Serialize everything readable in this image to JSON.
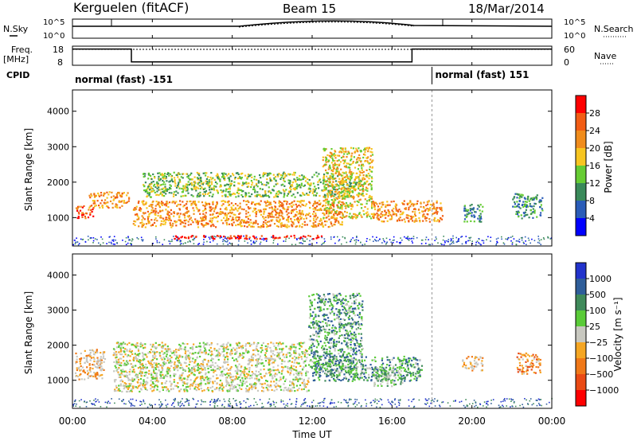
{
  "header": {
    "station": "Kerguelen (fitACF)",
    "beam": "Beam 15",
    "date": "18/Mar/2014"
  },
  "noise_panel": {
    "left_label": "N.Sky",
    "right_label": "N.Search",
    "left_ticks": [
      "10^5",
      "10^0"
    ],
    "right_ticks": [
      "10^5",
      "10^0"
    ]
  },
  "freq_panel": {
    "left_label_line1": "Freq.",
    "left_label_line2": "[MHz]",
    "right_label": "Nave",
    "left_ticks": [
      "18",
      "8"
    ],
    "right_ticks": [
      "60",
      "0"
    ],
    "freq_segments": [
      {
        "start_h": 0.0,
        "end_h": 2.95,
        "mhz": 16.5
      },
      {
        "start_h": 2.95,
        "end_h": 17.0,
        "mhz": 9.8
      },
      {
        "start_h": 17.0,
        "end_h": 24.0,
        "mhz": 16.5
      }
    ],
    "nave_level": 50
  },
  "cpid": {
    "label": "CPID",
    "segments": [
      {
        "start_h": 0.0,
        "text": "normal (fast) -151"
      },
      {
        "start_h": 18.0,
        "text": "normal (fast) 151"
      }
    ]
  },
  "time_axis": {
    "label": "Time UT",
    "ticks": [
      "00:00",
      "04:00",
      "08:00",
      "12:00",
      "16:00",
      "20:00",
      "00:00"
    ],
    "range_h": [
      0,
      24
    ]
  },
  "power_panel": {
    "ylabel": "Slant Range [km]",
    "yticks": [
      "1000",
      "2000",
      "3000",
      "4000"
    ],
    "colorbar_label": "Power [dB]",
    "colorbar_ticks": [
      "4",
      "8",
      "12",
      "16",
      "20",
      "24",
      "28"
    ],
    "colors": [
      "#0000ff",
      "#2a5cb8",
      "#3a8a5a",
      "#66cc33",
      "#f7c520",
      "#f08c1c",
      "#f25c14",
      "#ff0000"
    ]
  },
  "velocity_panel": {
    "ylabel": "Slant Range [km]",
    "yticks": [
      "1000",
      "2000",
      "3000",
      "4000"
    ],
    "colorbar_label": "Velocity [m s⁻¹]",
    "colorbar_ticks": [
      "1000",
      "500",
      "100",
      "25",
      "−25",
      "−100",
      "−500",
      "−1000"
    ],
    "colors": [
      "#2233cc",
      "#2f5e9a",
      "#3f8a5a",
      "#5acb38",
      "#c8c8c0",
      "#f5a623",
      "#f07818",
      "#ea4a14",
      "#ff0000"
    ],
    "ground_scatter_color": "#c8c8c0"
  },
  "chart_data": {
    "type": "heatmap",
    "x_range_hours": [
      0,
      24
    ],
    "y_range_km": [
      200,
      4600
    ],
    "power_features": [
      {
        "start_h": 0.1,
        "end_h": 1.0,
        "r_lo": 1000,
        "r_hi": 1350,
        "level": 6
      },
      {
        "start_h": 0.8,
        "end_h": 2.8,
        "r_lo": 1300,
        "r_hi": 1750,
        "level": 5
      },
      {
        "start_h": 3.0,
        "end_h": 13.5,
        "r_lo": 750,
        "r_hi": 1500,
        "level": 5
      },
      {
        "start_h": 3.5,
        "end_h": 14.5,
        "r_lo": 1600,
        "r_hi": 2300,
        "level": 3
      },
      {
        "start_h": 5.0,
        "end_h": 12.5,
        "r_lo": 420,
        "r_hi": 520,
        "level": 7
      },
      {
        "start_h": 12.5,
        "end_h": 15.0,
        "r_lo": 1000,
        "r_hi": 3000,
        "level": 4
      },
      {
        "start_h": 15.0,
        "end_h": 18.5,
        "r_lo": 900,
        "r_hi": 1500,
        "level": 5
      },
      {
        "start_h": 19.5,
        "end_h": 20.5,
        "r_lo": 900,
        "r_hi": 1400,
        "level": 2
      },
      {
        "start_h": 22.0,
        "end_h": 23.5,
        "r_lo": 1000,
        "r_hi": 1700,
        "level": 2
      }
    ],
    "velocity_features": [
      {
        "start_h": 0.1,
        "end_h": 1.6,
        "r_lo": 1050,
        "r_hi": 1900,
        "level": 5
      },
      {
        "start_h": 2.0,
        "end_h": 11.8,
        "r_lo": 700,
        "r_hi": 2100,
        "level": 4
      },
      {
        "start_h": 11.8,
        "end_h": 14.5,
        "r_lo": 1300,
        "r_hi": 3500,
        "level": 2
      },
      {
        "start_h": 12.0,
        "end_h": 17.5,
        "r_lo": 1000,
        "r_hi": 1700,
        "level": 2
      },
      {
        "start_h": 15.0,
        "end_h": 16.5,
        "r_lo": 850,
        "r_hi": 1350,
        "level": 3
      },
      {
        "start_h": 19.5,
        "end_h": 20.5,
        "r_lo": 1300,
        "r_hi": 1700,
        "level": 5
      },
      {
        "start_h": 22.2,
        "end_h": 23.4,
        "r_lo": 1200,
        "r_hi": 1800,
        "level": 6
      }
    ]
  }
}
